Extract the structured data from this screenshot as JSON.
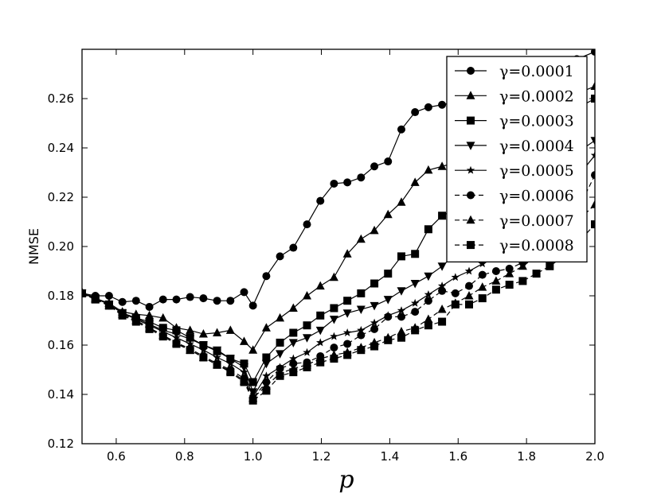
{
  "chart_data": {
    "type": "line",
    "xlabel": "p",
    "ylabel": "NMSE",
    "xlim": [
      0.5,
      2.0
    ],
    "ylim": [
      0.12,
      0.28
    ],
    "xticks": [
      "0.6",
      "0.8",
      "1.0",
      "1.2",
      "1.4",
      "1.6",
      "1.8",
      "2.0"
    ],
    "yticks": [
      "0.12",
      "0.14",
      "0.16",
      "0.18",
      "0.20",
      "0.22",
      "0.24",
      "0.26"
    ],
    "grid": false,
    "legend_position": "top-right",
    "x": [
      0.5,
      0.539,
      0.579,
      0.618,
      0.658,
      0.697,
      0.737,
      0.776,
      0.816,
      0.855,
      0.895,
      0.934,
      0.974,
      1.0,
      1.039,
      1.079,
      1.118,
      1.158,
      1.197,
      1.237,
      1.276,
      1.316,
      1.355,
      1.395,
      1.434,
      1.474,
      1.513,
      1.553,
      1.592,
      1.632,
      1.671,
      1.711,
      1.75,
      1.789,
      1.829,
      1.868,
      1.908,
      1.947,
      2.0
    ],
    "series": [
      {
        "name": "γ=0.0001",
        "marker": "circle",
        "dash": "solid",
        "values": [
          0.181,
          0.18,
          0.18,
          0.1775,
          0.178,
          0.1755,
          0.1785,
          0.1785,
          0.1795,
          0.179,
          0.178,
          0.178,
          0.1815,
          0.176,
          0.188,
          0.196,
          0.1995,
          0.209,
          0.2185,
          0.2255,
          0.226,
          0.228,
          0.2325,
          0.2345,
          0.2475,
          0.2545,
          0.2565,
          0.2575,
          0.2585,
          0.26,
          0.262,
          0.264,
          0.266,
          0.268,
          0.27,
          0.272,
          0.274,
          0.276,
          0.279
        ]
      },
      {
        "name": "γ=0.0002",
        "marker": "triangle-up",
        "dash": "solid",
        "values": [
          0.1815,
          0.179,
          0.177,
          0.1735,
          0.1725,
          0.172,
          0.171,
          0.167,
          0.166,
          0.1645,
          0.165,
          0.166,
          0.1615,
          0.158,
          0.167,
          0.171,
          0.175,
          0.18,
          0.184,
          0.1875,
          0.197,
          0.203,
          0.2065,
          0.213,
          0.218,
          0.226,
          0.231,
          0.2325,
          0.234,
          0.237,
          0.24,
          0.243,
          0.246,
          0.249,
          0.252,
          0.255,
          0.258,
          0.262,
          0.265
        ]
      },
      {
        "name": "γ=0.0003",
        "marker": "square",
        "dash": "solid",
        "values": [
          0.181,
          0.179,
          0.1765,
          0.173,
          0.171,
          0.1695,
          0.167,
          0.166,
          0.163,
          0.16,
          0.1575,
          0.1545,
          0.1525,
          0.145,
          0.155,
          0.161,
          0.165,
          0.168,
          0.172,
          0.175,
          0.178,
          0.181,
          0.185,
          0.189,
          0.196,
          0.197,
          0.207,
          0.2125,
          0.215,
          0.219,
          0.224,
          0.229,
          0.234,
          0.238,
          0.242,
          0.247,
          0.252,
          0.256,
          0.26
        ]
      },
      {
        "name": "γ=0.0004",
        "marker": "triangle-down",
        "dash": "solid",
        "values": [
          0.181,
          0.179,
          0.1765,
          0.173,
          0.171,
          0.1685,
          0.166,
          0.1645,
          0.1625,
          0.16,
          0.158,
          0.1545,
          0.151,
          0.141,
          0.1525,
          0.1565,
          0.161,
          0.163,
          0.166,
          0.1705,
          0.173,
          0.1745,
          0.176,
          0.1785,
          0.182,
          0.185,
          0.188,
          0.192,
          0.197,
          0.201,
          0.205,
          0.21,
          0.215,
          0.22,
          0.225,
          0.229,
          0.234,
          0.238,
          0.243
        ]
      },
      {
        "name": "γ=0.0005",
        "marker": "star",
        "dash": "solid",
        "values": [
          0.181,
          0.179,
          0.1765,
          0.173,
          0.1705,
          0.168,
          0.1655,
          0.163,
          0.1605,
          0.158,
          0.155,
          0.1525,
          0.149,
          0.139,
          0.1475,
          0.151,
          0.1545,
          0.157,
          0.161,
          0.1635,
          0.165,
          0.166,
          0.169,
          0.172,
          0.174,
          0.177,
          0.1805,
          0.184,
          0.1875,
          0.19,
          0.193,
          0.197,
          0.202,
          0.207,
          0.212,
          0.217,
          0.222,
          0.228,
          0.237
        ]
      },
      {
        "name": "γ=0.0006",
        "marker": "circle",
        "dash": "dashed",
        "values": [
          0.181,
          0.179,
          0.176,
          0.1725,
          0.17,
          0.167,
          0.164,
          0.161,
          0.1585,
          0.1555,
          0.1525,
          0.15,
          0.1465,
          0.1385,
          0.145,
          0.1505,
          0.1525,
          0.153,
          0.1555,
          0.159,
          0.1605,
          0.164,
          0.1665,
          0.1715,
          0.1715,
          0.1735,
          0.178,
          0.182,
          0.181,
          0.184,
          0.1885,
          0.19,
          0.191,
          0.1935,
          0.197,
          0.201,
          0.207,
          0.214,
          0.229
        ]
      },
      {
        "name": "γ=0.0007",
        "marker": "triangle-up",
        "dash": "dashed",
        "values": [
          0.181,
          0.1785,
          0.176,
          0.1725,
          0.17,
          0.167,
          0.164,
          0.161,
          0.158,
          0.155,
          0.152,
          0.1495,
          0.1455,
          0.1385,
          0.1435,
          0.1485,
          0.1505,
          0.152,
          0.1545,
          0.156,
          0.157,
          0.159,
          0.161,
          0.163,
          0.1655,
          0.167,
          0.1705,
          0.1745,
          0.177,
          0.18,
          0.1835,
          0.186,
          0.189,
          0.192,
          0.196,
          0.2,
          0.205,
          0.21,
          0.217
        ]
      },
      {
        "name": "γ=0.0008",
        "marker": "square",
        "dash": "dashed",
        "values": [
          0.181,
          0.1785,
          0.176,
          0.172,
          0.1695,
          0.1665,
          0.1635,
          0.1605,
          0.158,
          0.155,
          0.152,
          0.149,
          0.145,
          0.1375,
          0.1415,
          0.1475,
          0.149,
          0.151,
          0.153,
          0.1545,
          0.156,
          0.158,
          0.1595,
          0.162,
          0.163,
          0.166,
          0.168,
          0.1695,
          0.1765,
          0.1765,
          0.179,
          0.1825,
          0.1845,
          0.186,
          0.189,
          0.192,
          0.196,
          0.201,
          0.209
        ]
      }
    ]
  }
}
